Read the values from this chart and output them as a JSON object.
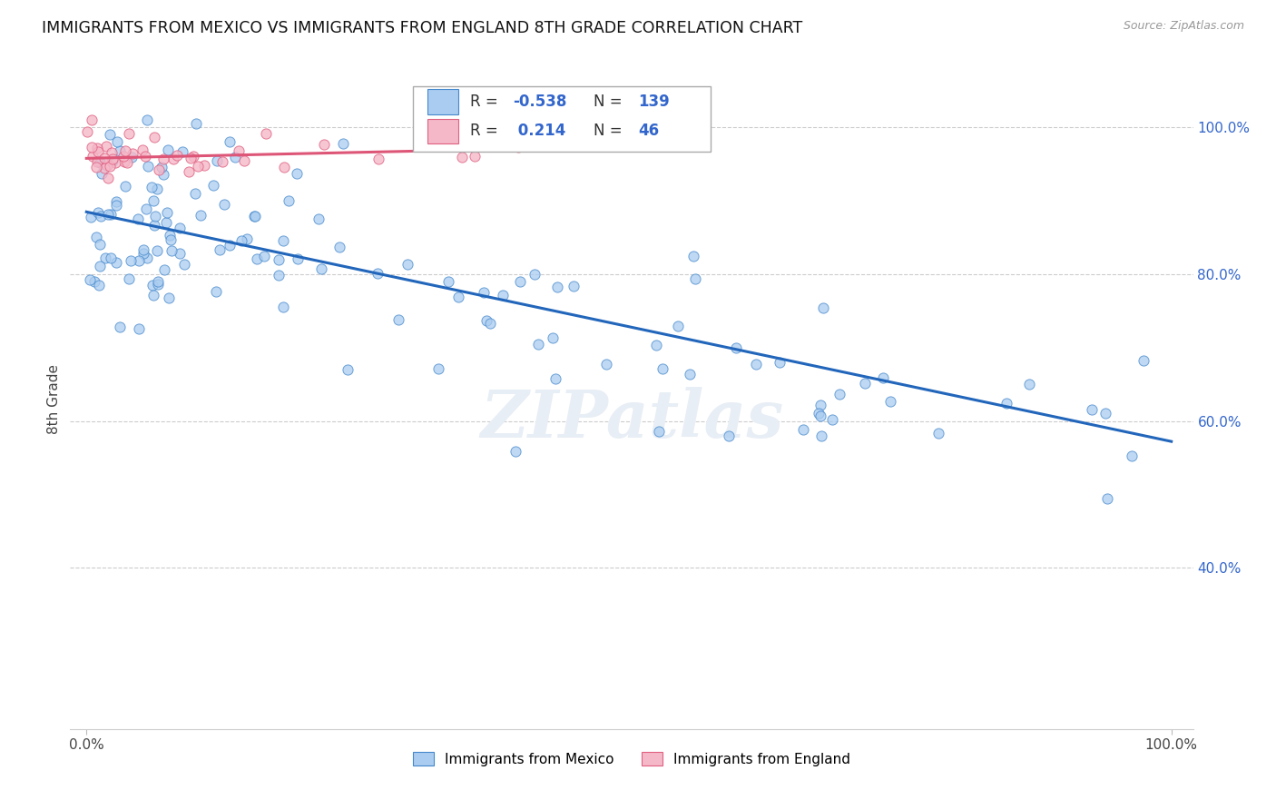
{
  "title": "IMMIGRANTS FROM MEXICO VS IMMIGRANTS FROM ENGLAND 8TH GRADE CORRELATION CHART",
  "source": "Source: ZipAtlas.com",
  "ylabel": "8th Grade",
  "legend_r_mexico": "-0.538",
  "legend_n_mexico": "139",
  "legend_r_england": "0.214",
  "legend_n_england": "46",
  "color_mexico_fill": "#aaccf0",
  "color_mexico_edge": "#4488cc",
  "color_england_fill": "#f5b8c8",
  "color_england_edge": "#e06080",
  "color_line_mexico": "#2266bb",
  "color_line_england": "#dd5577",
  "color_text_blue": "#3366cc",
  "color_grid": "#cccccc",
  "watermark_color": "#e8eef5",
  "ytick_vals": [
    0.4,
    0.6,
    0.8,
    1.0
  ],
  "ytick_labels": [
    "40.0%",
    "60.0%",
    "80.0%",
    "100.0%"
  ],
  "xlim": [
    -0.015,
    1.02
  ],
  "ylim": [
    0.18,
    1.08
  ],
  "line_mexico_x0": 0.0,
  "line_mexico_y0": 0.885,
  "line_mexico_x1": 1.0,
  "line_mexico_y1": 0.572,
  "line_england_x0": 0.0,
  "line_england_y0": 0.958,
  "line_england_x1": 0.43,
  "line_england_y1": 0.972
}
